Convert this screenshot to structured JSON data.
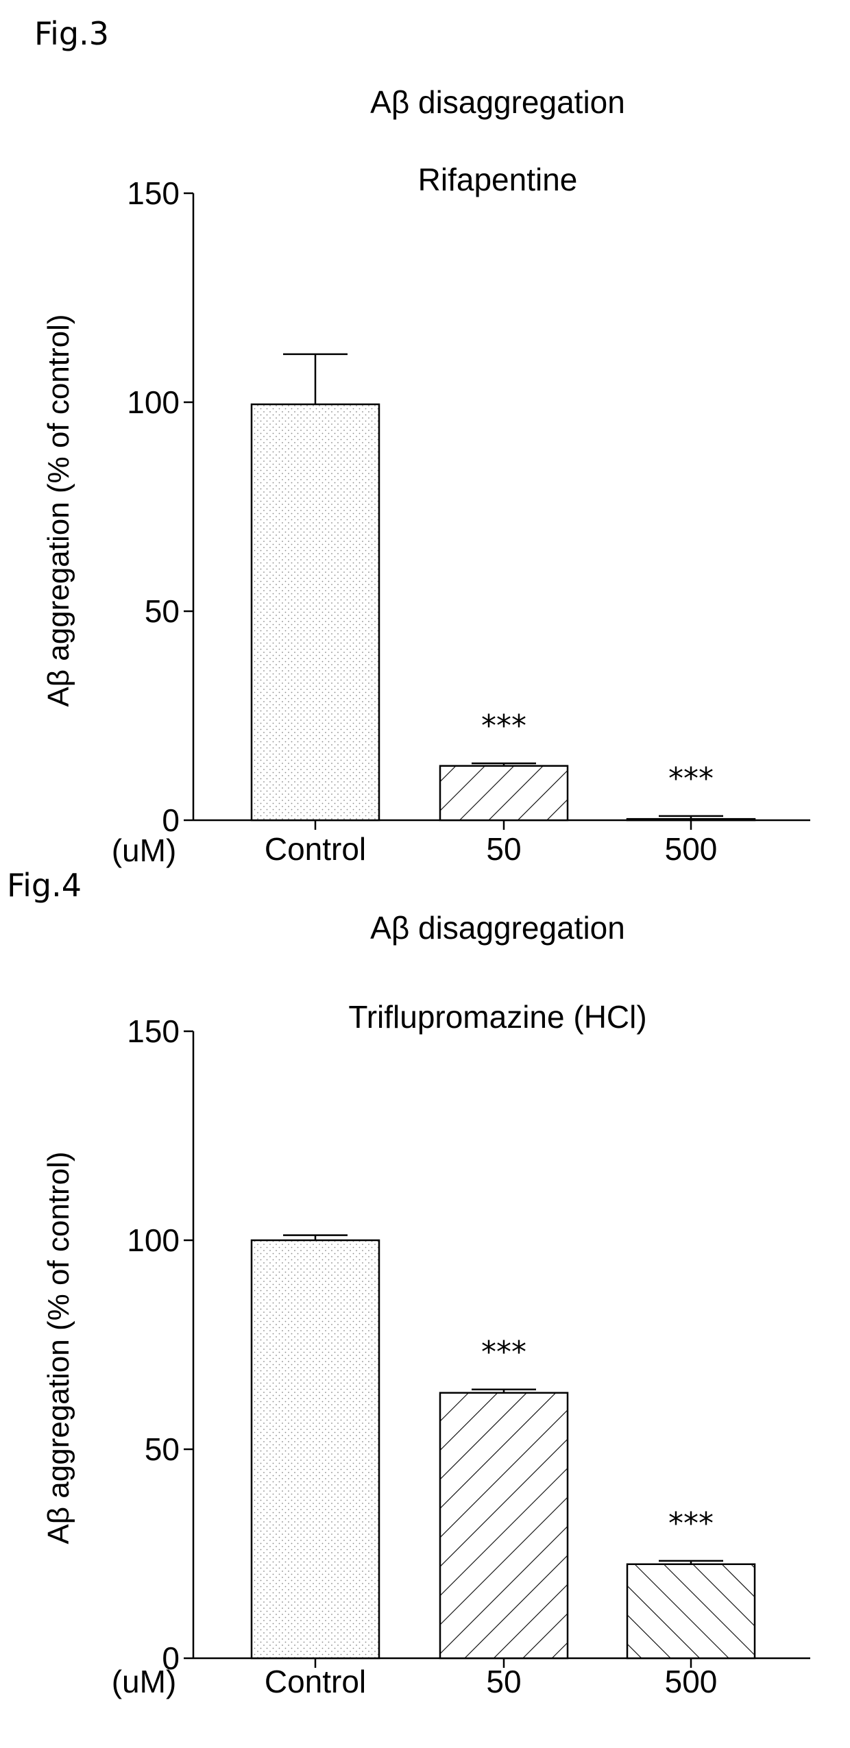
{
  "figures": [
    {
      "label": "Fig.3",
      "chart_data": {
        "type": "bar",
        "title": "Aβ disaggregation",
        "subtitle": "Rifapentine",
        "xlabel": "(uM)",
        "ylabel": "Aβ aggregation (% of control)",
        "categories": [
          "Control",
          "50",
          "500"
        ],
        "values": [
          99.5,
          13,
          0.3
        ],
        "errors": [
          12,
          0.6,
          0.7
        ],
        "significance": [
          "",
          "***",
          "***"
        ],
        "patterns": [
          "dots",
          "diag-up",
          "diag-up"
        ],
        "ylim": [
          0,
          150
        ],
        "yticks": [
          0,
          50,
          100,
          150
        ],
        "grid": false
      }
    },
    {
      "label": "Fig.4",
      "chart_data": {
        "type": "bar",
        "title": "Aβ disaggregation",
        "subtitle": "Triflupromazine (HCl)",
        "xlabel": "(uM)",
        "ylabel": "Aβ aggregation (% of control)",
        "categories": [
          "Control",
          "50",
          "500"
        ],
        "values": [
          100,
          63.5,
          22.5
        ],
        "errors": [
          1.2,
          0.8,
          0.8
        ],
        "significance": [
          "",
          "***",
          "***"
        ],
        "patterns": [
          "dots",
          "diag-up",
          "diag-down"
        ],
        "ylim": [
          0,
          150
        ],
        "yticks": [
          0,
          50,
          100,
          150
        ],
        "grid": false
      }
    }
  ]
}
